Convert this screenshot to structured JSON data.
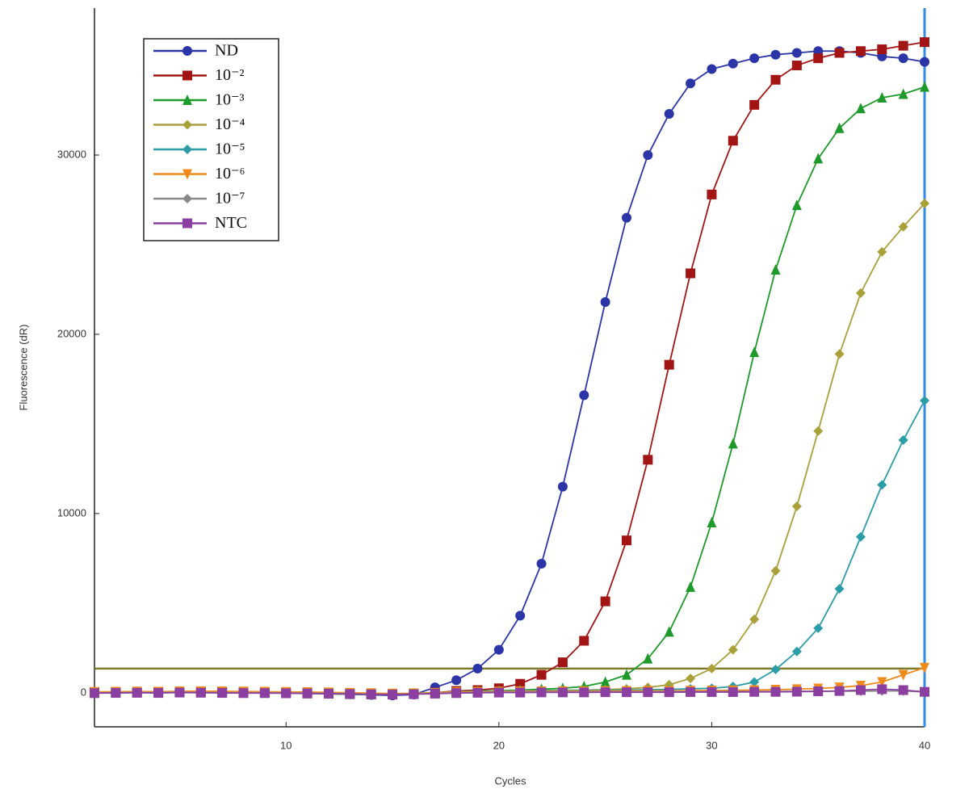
{
  "chart_data": {
    "type": "line",
    "x_label": "Cycles",
    "y_label": "Fluorescence (dR)",
    "x": [
      1,
      2,
      3,
      4,
      5,
      6,
      7,
      8,
      9,
      10,
      11,
      12,
      13,
      14,
      15,
      16,
      17,
      18,
      19,
      20,
      21,
      22,
      23,
      24,
      25,
      26,
      27,
      28,
      29,
      30,
      31,
      32,
      33,
      34,
      35,
      36,
      37,
      38,
      39,
      40
    ],
    "xlim": [
      1,
      40
    ],
    "xticks": [
      10,
      20,
      30,
      40
    ],
    "ylim": [
      -1900,
      38200
    ],
    "yticks": [
      0,
      10000,
      20000,
      30000
    ],
    "threshold": 1350,
    "threshold_color": "#7d7a2c",
    "cursor_x": 40,
    "cursor_color": "#2f8de4",
    "legend": "upper left",
    "series": [
      {
        "name": "ND",
        "color": "#2b35a8",
        "marker": "circle",
        "values": [
          20,
          30,
          10,
          40,
          20,
          60,
          40,
          30,
          20,
          10,
          0,
          -50,
          -80,
          -120,
          -150,
          -100,
          300,
          700,
          1350,
          2400,
          4300,
          7200,
          11500,
          16600,
          21800,
          26500,
          30000,
          32300,
          34000,
          34800,
          35100,
          35400,
          35600,
          35700,
          35800,
          35800,
          35700,
          35500,
          35400,
          35200
        ]
      },
      {
        "name": "10⁻²",
        "color": "#a31515",
        "marker": "square",
        "values": [
          20,
          30,
          10,
          40,
          20,
          50,
          30,
          20,
          10,
          0,
          -20,
          -40,
          -60,
          -80,
          -100,
          -60,
          0,
          100,
          150,
          250,
          500,
          1000,
          1700,
          2900,
          5100,
          8500,
          13000,
          18300,
          23400,
          27800,
          30800,
          32800,
          34200,
          35000,
          35400,
          35700,
          35800,
          35900,
          36100,
          36300
        ]
      },
      {
        "name": "10⁻³",
        "color": "#1e9a2a",
        "marker": "triangle",
        "values": [
          30,
          20,
          40,
          10,
          50,
          30,
          20,
          10,
          0,
          -20,
          -40,
          -60,
          -80,
          -100,
          -80,
          -40,
          0,
          50,
          100,
          120,
          150,
          200,
          250,
          350,
          600,
          1000,
          1900,
          3400,
          5900,
          9500,
          13900,
          19000,
          23600,
          27200,
          29800,
          31500,
          32600,
          33200,
          33400,
          33800
        ]
      },
      {
        "name": "10⁻⁴",
        "color": "#a9a03a",
        "marker": "diamond",
        "values": [
          20,
          30,
          40,
          10,
          50,
          30,
          20,
          10,
          0,
          -20,
          -40,
          -60,
          -80,
          -100,
          -80,
          -40,
          0,
          50,
          80,
          100,
          120,
          130,
          140,
          150,
          180,
          220,
          300,
          450,
          800,
          1350,
          2400,
          4100,
          6800,
          10400,
          14600,
          18900,
          22300,
          24600,
          26000,
          27300
        ]
      },
      {
        "name": "10⁻⁵",
        "color": "#2a9da8",
        "marker": "diamond",
        "values": [
          30,
          20,
          40,
          10,
          50,
          30,
          20,
          10,
          0,
          -20,
          -40,
          -60,
          -80,
          -100,
          -80,
          -40,
          0,
          50,
          80,
          100,
          110,
          120,
          120,
          130,
          140,
          150,
          170,
          190,
          220,
          250,
          350,
          600,
          1300,
          2300,
          3600,
          5800,
          8700,
          11600,
          14100,
          16300
        ]
      },
      {
        "name": "10⁻⁶",
        "color": "#f08a1a",
        "marker": "triangle-down",
        "values": [
          50,
          60,
          70,
          60,
          80,
          90,
          80,
          70,
          60,
          50,
          40,
          20,
          0,
          -20,
          -40,
          -30,
          0,
          40,
          60,
          70,
          80,
          80,
          90,
          90,
          100,
          100,
          110,
          110,
          120,
          130,
          140,
          150,
          170,
          200,
          240,
          300,
          400,
          600,
          1000,
          1400
        ]
      },
      {
        "name": "10⁻⁷",
        "color": "#8a8a8a",
        "marker": "diamond",
        "values": [
          0,
          10,
          20,
          10,
          30,
          20,
          10,
          0,
          0,
          -10,
          -20,
          -40,
          -60,
          -80,
          -90,
          -70,
          -40,
          0,
          20,
          30,
          30,
          40,
          40,
          40,
          50,
          50,
          50,
          60,
          60,
          60,
          70,
          70,
          70,
          80,
          80,
          90,
          90,
          100,
          100,
          50
        ]
      },
      {
        "name": "NTC",
        "color": "#8b3fa0",
        "marker": "square",
        "values": [
          -20,
          -10,
          0,
          -10,
          10,
          0,
          -10,
          -20,
          -20,
          -30,
          -40,
          -50,
          -70,
          -90,
          -100,
          -80,
          -50,
          -20,
          0,
          10,
          10,
          20,
          20,
          20,
          30,
          30,
          30,
          30,
          40,
          40,
          40,
          50,
          50,
          60,
          80,
          100,
          150,
          200,
          150,
          50
        ]
      }
    ]
  }
}
